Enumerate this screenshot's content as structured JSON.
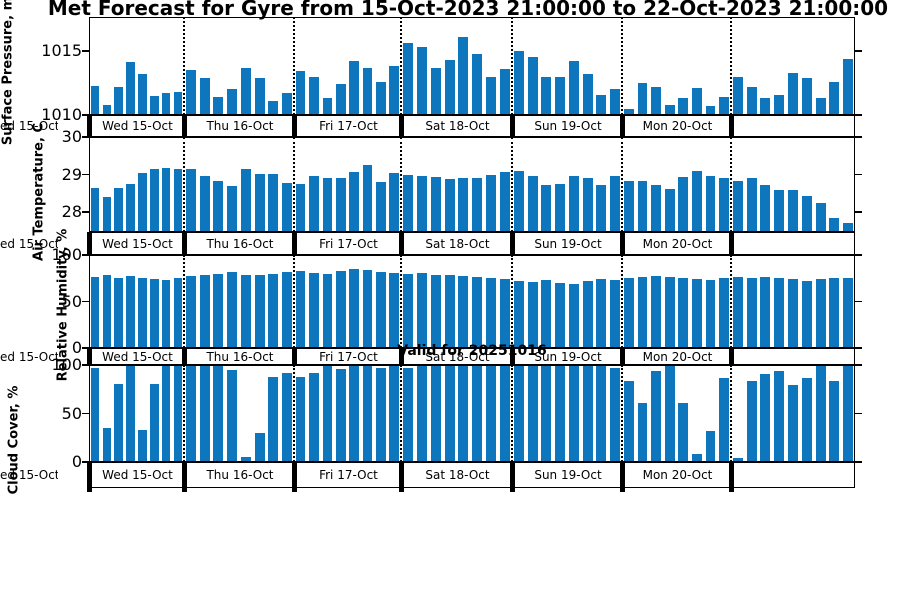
{
  "title": "Met Forecast for Gyre from 15-Oct-2023 21:00:00 to 22-Oct-2023 21:00:00",
  "valid_label": "Valid for 20251016",
  "left_edge_cut_label": "ed 15-Oct",
  "bar_color": "#0e76bc",
  "day_labels": [
    "Wed 15-Oct",
    "Thu 16-Oct",
    "Fri 17-Oct",
    "Sat 18-Oct",
    "Sun 19-Oct",
    "Mon 20-Oct",
    ""
  ],
  "chart_data": [
    {
      "type": "bar",
      "ylabel": "Surface Pressure, m",
      "ylim": [
        1010,
        1017.65
      ],
      "yticks": [
        "1010",
        "1015"
      ],
      "grid": "dotted-day-dividers",
      "values": [
        1012.3,
        1010.8,
        1012.2,
        1014.1,
        1013.2,
        1011.5,
        1011.7,
        1011.8,
        1013.5,
        1012.9,
        1011.4,
        1012.0,
        1013.7,
        1012.9,
        1011.1,
        1011.7,
        1013.4,
        1013.0,
        1011.3,
        1012.4,
        1014.2,
        1013.7,
        1012.6,
        1013.8,
        1015.6,
        1015.3,
        1013.7,
        1014.3,
        1016.1,
        1014.8,
        1013.0,
        1013.6,
        1015.0,
        1014.5,
        1013.0,
        1013.0,
        1014.2,
        1013.2,
        1011.6,
        1012.0,
        1010.5,
        1012.5,
        1012.2,
        1010.8,
        1011.3,
        1012.1,
        1010.7,
        1011.4,
        1013.0,
        1012.2,
        1011.3,
        1011.6,
        1013.3,
        1012.9,
        1011.3,
        1012.6,
        1014.4
      ]
    },
    {
      "type": "bar",
      "ylabel": "Air Temperature, C",
      "ylim": [
        27.47,
        30
      ],
      "yticks": [
        "28",
        "29",
        "30"
      ],
      "grid": "dotted-day-dividers",
      "values": [
        28.65,
        28.4,
        28.65,
        28.75,
        29.05,
        29.15,
        29.17,
        29.15,
        29.15,
        28.97,
        28.83,
        28.7,
        29.15,
        29.02,
        29.02,
        28.78,
        28.76,
        28.97,
        28.9,
        28.9,
        29.07,
        29.25,
        28.8,
        29.05,
        29.0,
        28.97,
        28.94,
        28.88,
        28.92,
        28.9,
        28.99,
        29.06,
        29.09,
        28.97,
        28.73,
        28.75,
        28.97,
        28.9,
        28.73,
        28.95,
        28.82,
        28.84,
        28.73,
        28.62,
        28.93,
        29.1,
        28.97,
        28.9,
        28.84,
        28.9,
        28.73,
        28.6,
        28.58,
        28.42,
        28.25,
        27.83,
        27.72
      ]
    },
    {
      "type": "bar",
      "ylabel": "Relative Humidity, %",
      "ylim": [
        0,
        100
      ],
      "yticks": [
        "0",
        "50",
        "100"
      ],
      "grid": "dotted-day-dividers",
      "values": [
        76,
        79,
        75,
        77,
        75,
        74,
        73,
        75,
        77,
        78,
        80,
        82,
        79,
        78,
        80,
        82,
        83,
        81,
        80,
        83,
        85,
        84,
        82,
        81,
        80,
        81,
        79,
        78,
        77,
        76,
        75,
        74,
        72,
        71,
        73,
        70,
        69,
        72,
        74,
        73,
        75,
        76,
        77,
        76,
        75,
        74,
        73,
        75,
        76,
        75,
        76,
        75,
        74,
        72,
        74,
        75,
        75
      ]
    },
    {
      "type": "bar",
      "ylabel": "Cloud Cover, %",
      "ylim": [
        0,
        100
      ],
      "yticks": [
        "0",
        "50",
        "100"
      ],
      "grid": "dotted-day-dividers",
      "values": [
        97,
        35,
        80,
        100,
        33,
        80,
        100,
        100,
        100,
        100,
        100,
        95,
        5,
        30,
        88,
        92,
        88,
        92,
        100,
        96,
        100,
        100,
        97,
        100,
        97,
        100,
        100,
        100,
        100,
        100,
        100,
        100,
        100,
        100,
        100,
        100,
        100,
        100,
        100,
        97,
        83,
        61,
        94,
        100,
        61,
        8,
        32,
        87,
        4,
        83,
        91,
        94,
        79,
        87,
        100,
        83,
        100
      ]
    }
  ]
}
